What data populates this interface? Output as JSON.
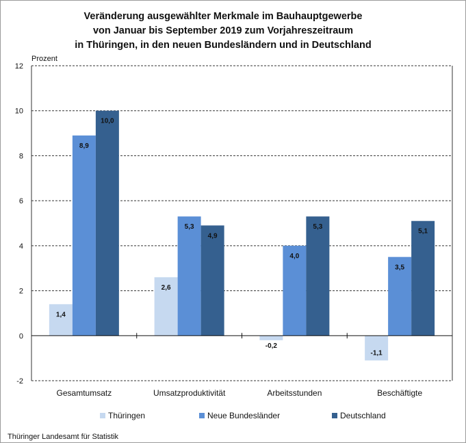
{
  "chart_data": {
    "type": "bar",
    "title": [
      "Veränderung ausgewählter Merkmale im Bauhauptgewerbe",
      "von Januar bis September 2019 zum Vorjahreszeitraum",
      "in Thüringen, in den neuen Bundesländern und in Deutschland"
    ],
    "ylabel": "Prozent",
    "ylim": [
      -2,
      12
    ],
    "yticks": [
      -2,
      0,
      2,
      4,
      6,
      8,
      10,
      12
    ],
    "grid": true,
    "legend_position": "bottom",
    "categories": [
      "Gesamtumsatz",
      "Umsatzproduktivität",
      "Arbeitsstunden",
      "Beschäftigte"
    ],
    "series": [
      {
        "name": "Thüringen",
        "color": "#c6d9f0",
        "values": [
          1.4,
          2.6,
          -0.2,
          -1.1
        ],
        "labels": [
          "1,4",
          "2,6",
          "-0,2",
          "-1,1"
        ]
      },
      {
        "name": "Neue Bundesländer",
        "color": "#5b8fd6",
        "values": [
          8.9,
          5.3,
          4.0,
          3.5
        ],
        "labels": [
          "8,9",
          "5,3",
          "4,0",
          "3,5"
        ]
      },
      {
        "name": "Deutschland",
        "color": "#35608f",
        "values": [
          10.0,
          4.9,
          5.3,
          5.1
        ],
        "labels": [
          "10,0",
          "4,9",
          "5,3",
          "5,1"
        ]
      }
    ]
  },
  "source": "Thüringer Landesamt für Statistik"
}
